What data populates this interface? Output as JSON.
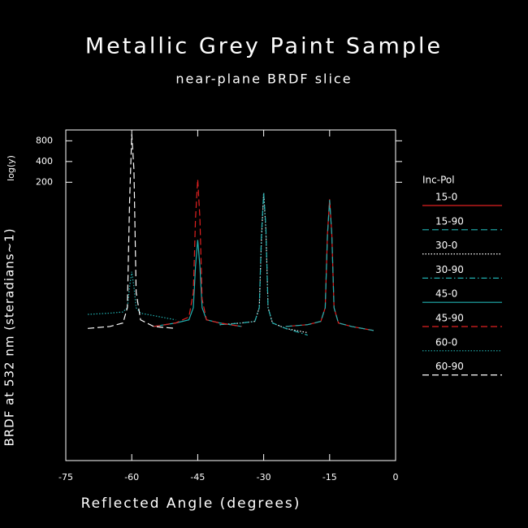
{
  "chart_data": {
    "type": "line",
    "title": "Metallic Grey Paint Sample",
    "subtitle": "near-plane BRDF slice",
    "x_label": "Reflected Angle (degrees)",
    "y_label": "BRDF at 532 nm (steradians~1)",
    "y_scale_label": "log(y)",
    "legend_title": "Inc-Pol",
    "log_y": true,
    "xlim": [
      -75,
      0
    ],
    "xticks": [
      -75,
      -60,
      -45,
      -30,
      -15,
      0
    ],
    "ylim": [
      0.018,
      1150
    ],
    "yticks": [
      200,
      400,
      800
    ],
    "series": [
      {
        "name": "15-0",
        "color": "#e02020",
        "dash": "solid",
        "x": [
          -25,
          -20,
          -17,
          -16,
          -15.5,
          -15,
          -14.5,
          -14,
          -13,
          -10,
          -5
        ],
        "values": [
          1.6,
          1.7,
          1.9,
          3,
          35,
          113,
          35,
          3,
          1.8,
          1.6,
          1.4
        ]
      },
      {
        "name": "15-90",
        "color": "#20b0b0",
        "dash": "dashed",
        "x": [
          -25,
          -20,
          -17,
          -16,
          -15.5,
          -15,
          -14.5,
          -14,
          -13,
          -10,
          -5
        ],
        "values": [
          1.6,
          1.7,
          1.9,
          3,
          33,
          110,
          34,
          3,
          1.8,
          1.6,
          1.4
        ]
      },
      {
        "name": "30-0",
        "color": "#ffffff",
        "dash": "dotted",
        "x": [
          -40,
          -35,
          -32,
          -31,
          -30.5,
          -30,
          -29.5,
          -29,
          -28,
          -25,
          -20
        ],
        "values": [
          1.7,
          1.8,
          1.9,
          3,
          30,
          140,
          40,
          3,
          1.8,
          1.5,
          1.3
        ]
      },
      {
        "name": "30-90",
        "color": "#20b0b0",
        "dash": "dashdot",
        "x": [
          -40,
          -35,
          -32,
          -31,
          -30.5,
          -30,
          -29.5,
          -29,
          -28,
          -25,
          -20
        ],
        "values": [
          1.7,
          1.8,
          1.9,
          3,
          35,
          140,
          45,
          3,
          1.8,
          1.5,
          1.2
        ]
      },
      {
        "name": "45-0",
        "color": "#20b0b0",
        "dash": "solid",
        "x": [
          -55,
          -50,
          -47,
          -46,
          -45.5,
          -45,
          -44.5,
          -44,
          -43,
          -40,
          -35
        ],
        "values": [
          1.6,
          1.8,
          2,
          3,
          12,
          29,
          12,
          3,
          2,
          1.8,
          1.6
        ]
      },
      {
        "name": "45-90",
        "color": "#e02020",
        "dash": "dashed",
        "x": [
          -55,
          -50,
          -47,
          -46,
          -45.5,
          -45,
          -44.5,
          -44,
          -43,
          -40,
          -35
        ],
        "values": [
          1.6,
          1.8,
          2.2,
          5,
          60,
          220,
          60,
          4,
          2,
          1.8,
          1.6
        ]
      },
      {
        "name": "60-0",
        "color": "#20b0b0",
        "dash": "dotted",
        "x": [
          -70,
          -65,
          -62,
          -61,
          -60.5,
          -60,
          -59.5,
          -59,
          -58,
          -55,
          -50
        ],
        "values": [
          2.4,
          2.5,
          2.6,
          3,
          6,
          10,
          6,
          3,
          2.5,
          2.3,
          2.0
        ]
      },
      {
        "name": "60-90",
        "color": "#ffffff",
        "dash": "dashed",
        "x": [
          -70,
          -65,
          -62,
          -61,
          -60.5,
          -60,
          -59.5,
          -59,
          -58,
          -55,
          -50
        ],
        "values": [
          1.5,
          1.6,
          1.8,
          3,
          100,
          995,
          300,
          5,
          2,
          1.6,
          1.5
        ]
      }
    ]
  }
}
